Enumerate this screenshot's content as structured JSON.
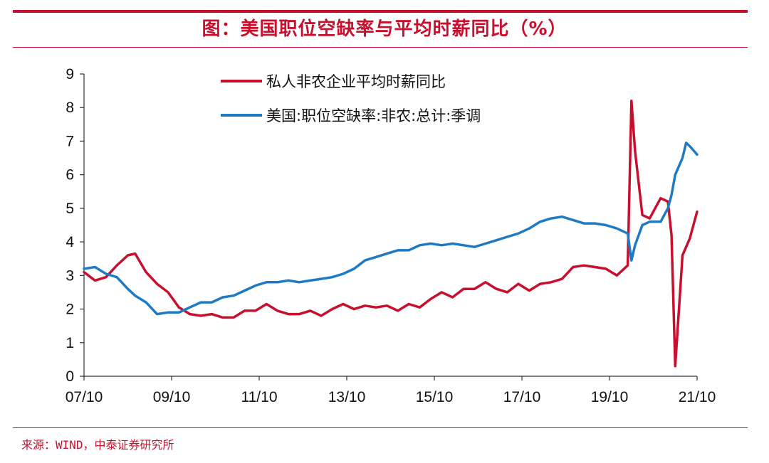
{
  "title": "图：美国职位空缺率与平均时薪同比（%）",
  "source": "来源：WIND，中泰证券研究所",
  "colors": {
    "accent": "#c8102e",
    "wage_series": "#c8102e",
    "vacancy_series": "#1f7ac4"
  },
  "chart_data": {
    "type": "line",
    "title": "图：美国职位空缺率与平均时薪同比（%）",
    "xlabel": "",
    "ylabel": "",
    "ylim": [
      0,
      9
    ],
    "yticks": [
      "0",
      "1",
      "2",
      "3",
      "4",
      "5",
      "6",
      "7",
      "8",
      "9"
    ],
    "xticks": [
      "07/10",
      "09/10",
      "11/10",
      "13/10",
      "15/10",
      "17/10",
      "19/10",
      "21/10"
    ],
    "grid": false,
    "legend_position": "top-center",
    "series": [
      {
        "name": "私人非农企业平均时薪同比",
        "color": "#c8102e",
        "points": [
          [
            "2007-10",
            3.1
          ],
          [
            "2008-01",
            2.85
          ],
          [
            "2008-04",
            2.95
          ],
          [
            "2008-07",
            3.3
          ],
          [
            "2008-10",
            3.6
          ],
          [
            "2008-12",
            3.65
          ],
          [
            "2009-03",
            3.1
          ],
          [
            "2009-06",
            2.75
          ],
          [
            "2009-09",
            2.5
          ],
          [
            "2009-12",
            2.05
          ],
          [
            "2010-03",
            1.85
          ],
          [
            "2010-06",
            1.8
          ],
          [
            "2010-09",
            1.85
          ],
          [
            "2010-12",
            1.75
          ],
          [
            "2011-03",
            1.75
          ],
          [
            "2011-06",
            1.95
          ],
          [
            "2011-09",
            1.95
          ],
          [
            "2011-12",
            2.15
          ],
          [
            "2012-03",
            1.95
          ],
          [
            "2012-06",
            1.85
          ],
          [
            "2012-09",
            1.85
          ],
          [
            "2012-12",
            1.95
          ],
          [
            "2013-03",
            1.8
          ],
          [
            "2013-06",
            2.0
          ],
          [
            "2013-09",
            2.15
          ],
          [
            "2013-12",
            2.0
          ],
          [
            "2014-03",
            2.1
          ],
          [
            "2014-06",
            2.05
          ],
          [
            "2014-09",
            2.1
          ],
          [
            "2014-12",
            1.95
          ],
          [
            "2015-03",
            2.15
          ],
          [
            "2015-06",
            2.05
          ],
          [
            "2015-09",
            2.3
          ],
          [
            "2015-12",
            2.5
          ],
          [
            "2016-03",
            2.35
          ],
          [
            "2016-06",
            2.6
          ],
          [
            "2016-09",
            2.6
          ],
          [
            "2016-12",
            2.8
          ],
          [
            "2017-03",
            2.6
          ],
          [
            "2017-06",
            2.5
          ],
          [
            "2017-09",
            2.75
          ],
          [
            "2017-12",
            2.55
          ],
          [
            "2018-03",
            2.75
          ],
          [
            "2018-06",
            2.8
          ],
          [
            "2018-09",
            2.9
          ],
          [
            "2018-12",
            3.25
          ],
          [
            "2019-03",
            3.3
          ],
          [
            "2019-06",
            3.25
          ],
          [
            "2019-09",
            3.2
          ],
          [
            "2019-12",
            3.0
          ],
          [
            "2020-03",
            3.3
          ],
          [
            "2020-04",
            8.2
          ],
          [
            "2020-05",
            6.7
          ],
          [
            "2020-07",
            4.8
          ],
          [
            "2020-09",
            4.7
          ],
          [
            "2020-12",
            5.3
          ],
          [
            "2021-02",
            5.2
          ],
          [
            "2021-03",
            4.2
          ],
          [
            "2021-04",
            0.3
          ],
          [
            "2021-06",
            3.6
          ],
          [
            "2021-08",
            4.1
          ],
          [
            "2021-10",
            4.9
          ]
        ]
      },
      {
        "name": "美国:职位空缺率:非农:总计:季调",
        "color": "#1f7ac4",
        "points": [
          [
            "2007-10",
            3.2
          ],
          [
            "2008-01",
            3.25
          ],
          [
            "2008-04",
            3.05
          ],
          [
            "2008-07",
            2.95
          ],
          [
            "2008-10",
            2.6
          ],
          [
            "2008-12",
            2.4
          ],
          [
            "2009-03",
            2.2
          ],
          [
            "2009-06",
            1.85
          ],
          [
            "2009-09",
            1.9
          ],
          [
            "2009-12",
            1.9
          ],
          [
            "2010-03",
            2.05
          ],
          [
            "2010-06",
            2.2
          ],
          [
            "2010-09",
            2.2
          ],
          [
            "2010-12",
            2.35
          ],
          [
            "2011-03",
            2.4
          ],
          [
            "2011-06",
            2.55
          ],
          [
            "2011-09",
            2.7
          ],
          [
            "2011-12",
            2.8
          ],
          [
            "2012-03",
            2.8
          ],
          [
            "2012-06",
            2.85
          ],
          [
            "2012-09",
            2.8
          ],
          [
            "2012-12",
            2.85
          ],
          [
            "2013-03",
            2.9
          ],
          [
            "2013-06",
            2.95
          ],
          [
            "2013-09",
            3.05
          ],
          [
            "2013-12",
            3.2
          ],
          [
            "2014-03",
            3.45
          ],
          [
            "2014-06",
            3.55
          ],
          [
            "2014-09",
            3.65
          ],
          [
            "2014-12",
            3.75
          ],
          [
            "2015-03",
            3.75
          ],
          [
            "2015-06",
            3.9
          ],
          [
            "2015-09",
            3.95
          ],
          [
            "2015-12",
            3.9
          ],
          [
            "2016-03",
            3.95
          ],
          [
            "2016-06",
            3.9
          ],
          [
            "2016-09",
            3.85
          ],
          [
            "2016-12",
            3.95
          ],
          [
            "2017-03",
            4.05
          ],
          [
            "2017-06",
            4.15
          ],
          [
            "2017-09",
            4.25
          ],
          [
            "2017-12",
            4.4
          ],
          [
            "2018-03",
            4.6
          ],
          [
            "2018-06",
            4.7
          ],
          [
            "2018-09",
            4.75
          ],
          [
            "2018-12",
            4.65
          ],
          [
            "2019-03",
            4.55
          ],
          [
            "2019-06",
            4.55
          ],
          [
            "2019-09",
            4.5
          ],
          [
            "2019-12",
            4.4
          ],
          [
            "2020-03",
            4.25
          ],
          [
            "2020-04",
            3.45
          ],
          [
            "2020-05",
            3.9
          ],
          [
            "2020-07",
            4.5
          ],
          [
            "2020-09",
            4.6
          ],
          [
            "2020-12",
            4.6
          ],
          [
            "2021-02",
            5.0
          ],
          [
            "2021-03",
            5.4
          ],
          [
            "2021-04",
            6.0
          ],
          [
            "2021-06",
            6.5
          ],
          [
            "2021-07",
            6.95
          ],
          [
            "2021-08",
            6.85
          ],
          [
            "2021-10",
            6.6
          ]
        ]
      }
    ]
  }
}
